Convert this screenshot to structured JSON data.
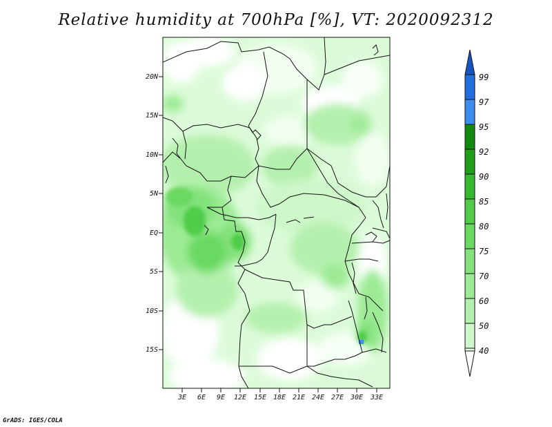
{
  "title": "Relative humidity at 700hPa [%], VT: 2020092312",
  "credit": "GrADS: IGES/COLA",
  "map": {
    "lon_range": [
      0,
      35
    ],
    "lat_range": [
      -20,
      25
    ],
    "lat_ticks": [
      "20N",
      "15N",
      "10N",
      "5N",
      "EQ",
      "5S",
      "10S",
      "15S"
    ],
    "lon_ticks": [
      "3E",
      "6E",
      "9E",
      "12E",
      "15E",
      "18E",
      "21E",
      "24E",
      "27E",
      "30E",
      "33E"
    ]
  },
  "colorbar": {
    "levels": [
      "40",
      "50",
      "60",
      "70",
      "75",
      "80",
      "85",
      "90",
      "92",
      "95",
      "97",
      "99"
    ],
    "colors": [
      "#ffffff",
      "#e8fde6",
      "#cef7ca",
      "#b4f0ad",
      "#9ceb94",
      "#83e27b",
      "#6ad962",
      "#50cc48",
      "#35ba2f",
      "#1f9e1a",
      "#138a10",
      "#3e8ef2",
      "#1f6fdc",
      "#1455c0"
    ]
  }
}
